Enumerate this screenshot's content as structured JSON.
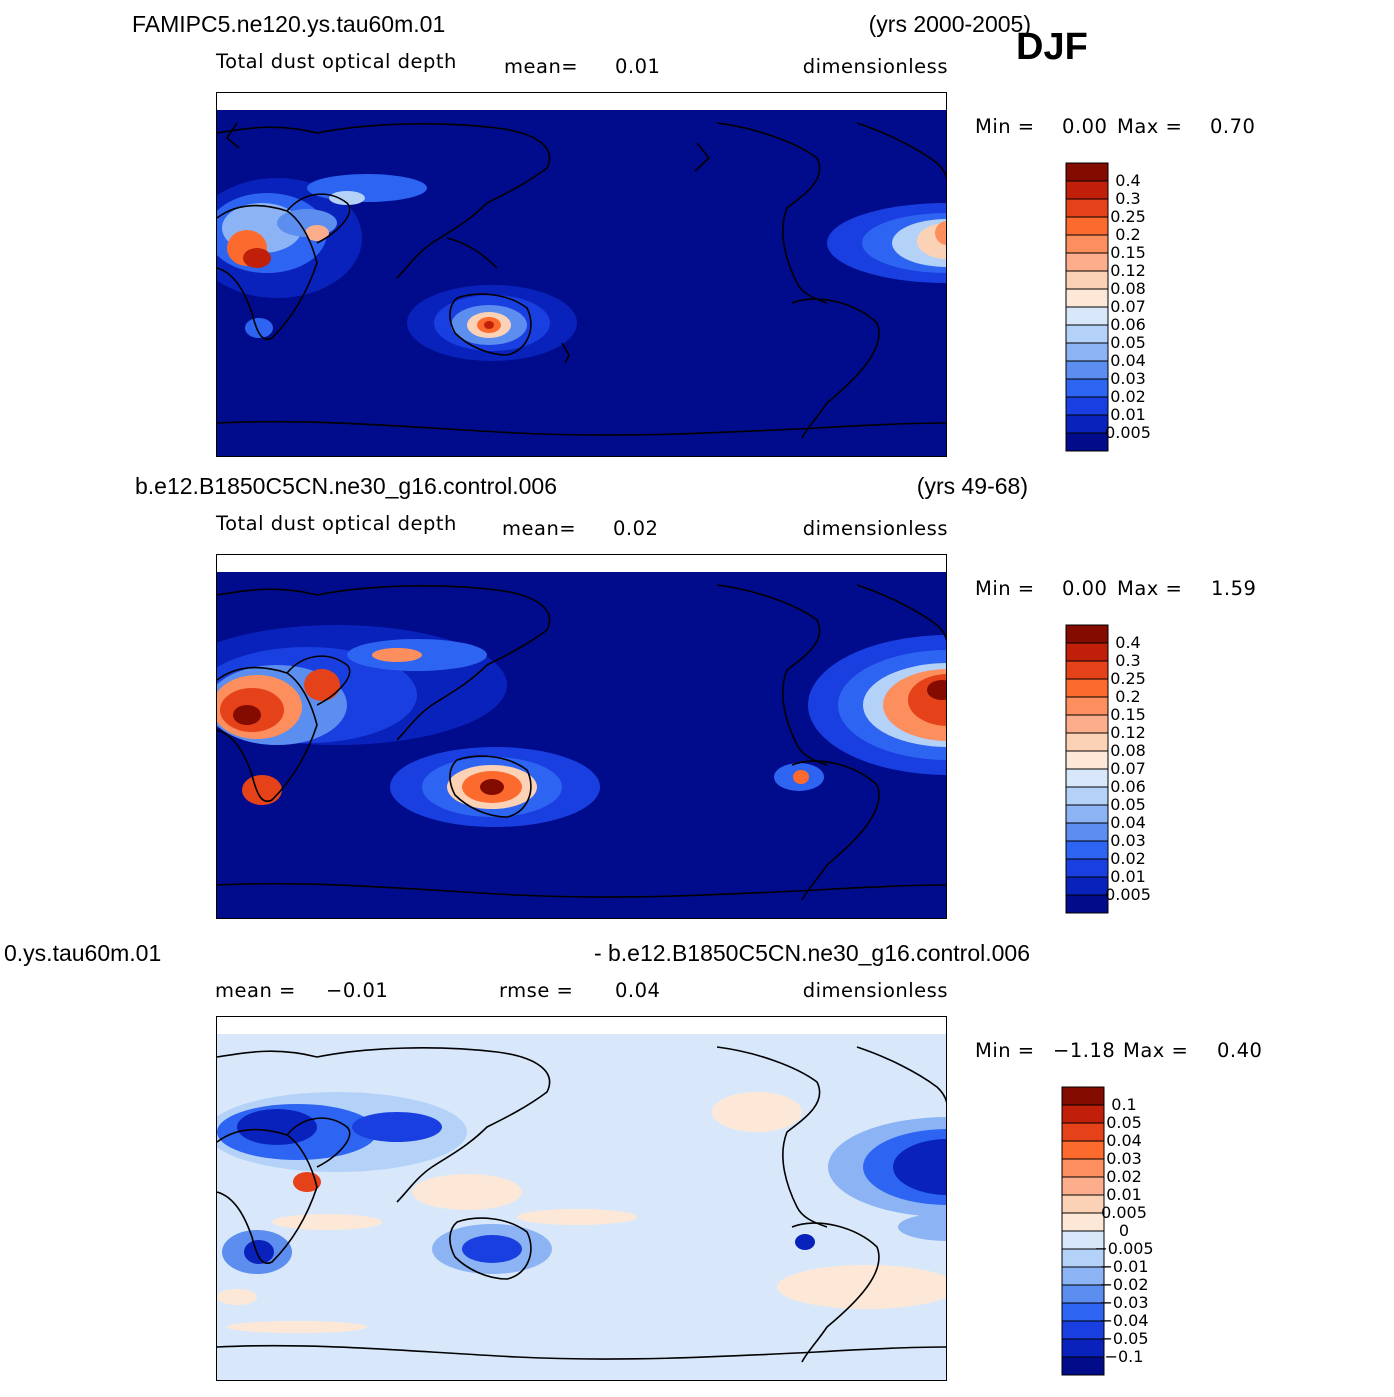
{
  "season": "DJF",
  "panels": [
    {
      "id": "panel-1",
      "case_title": "FAMIPC5.ne120.ys.tau60m.01",
      "years": "(yrs 2000-2005)",
      "variable": "Total dust optical depth",
      "stat1_label": "mean=",
      "stat1_value": "0.01",
      "stat2_label": "",
      "stat2_value": "",
      "units": "dimensionless",
      "min_label": "Min =",
      "min_value": "0.00",
      "max_label": "Max =",
      "max_value": "0.70",
      "colorbar_levels": [
        "0.4",
        "0.3",
        "0.25",
        "0.2",
        "0.15",
        "0.12",
        "0.08",
        "0.07",
        "0.06",
        "0.05",
        "0.04",
        "0.03",
        "0.02",
        "0.01",
        "0.005"
      ],
      "colorbar_colors": [
        "#840b00",
        "#c0200a",
        "#e6421a",
        "#fd6a2e",
        "#fd8e5e",
        "#fcae8c",
        "#fcd2b6",
        "#fde8d8",
        "#d8e8fa",
        "#b4d2f8",
        "#8cb4f4",
        "#5c8ef0",
        "#2e64f2",
        "#1a3fe0",
        "#0a22bc",
        "#020c8a"
      ],
      "field_background": "#010c8c"
    },
    {
      "id": "panel-2",
      "case_title": "b.e12.B1850C5CN.ne30_g16.control.006",
      "years": "(yrs 49-68)",
      "variable": "Total dust optical depth",
      "stat1_label": "mean=",
      "stat1_value": "0.02",
      "stat2_label": "",
      "stat2_value": "",
      "units": "dimensionless",
      "min_label": "Min =",
      "min_value": "0.00",
      "max_label": "Max =",
      "max_value": "1.59",
      "colorbar_levels": [
        "0.4",
        "0.3",
        "0.25",
        "0.2",
        "0.15",
        "0.12",
        "0.08",
        "0.07",
        "0.06",
        "0.05",
        "0.04",
        "0.03",
        "0.02",
        "0.01",
        "0.005"
      ],
      "colorbar_colors": [
        "#840b00",
        "#c0200a",
        "#e6421a",
        "#fd6a2e",
        "#fd8e5e",
        "#fcae8c",
        "#fcd2b6",
        "#fde8d8",
        "#d8e8fa",
        "#b4d2f8",
        "#8cb4f4",
        "#5c8ef0",
        "#2e64f2",
        "#1a3fe0",
        "#0a22bc",
        "#020c8a"
      ],
      "field_background": "#010c8c"
    },
    {
      "id": "panel-3",
      "case_title": "0.ys.tau60m.01",
      "years": "- b.e12.B1850C5CN.ne30_g16.control.006",
      "variable": "",
      "stat1_label": "mean =",
      "stat1_value": "−0.01",
      "stat2_label": "rmse =",
      "stat2_value": "0.04",
      "units": "dimensionless",
      "min_label": "Min =",
      "min_value": "−1.18",
      "max_label": "Max =",
      "max_value": "0.40",
      "colorbar_levels": [
        "0.1",
        "0.05",
        "0.04",
        "0.03",
        "0.02",
        "0.01",
        "0.005",
        "0",
        "−0.005",
        "−0.01",
        "−0.02",
        "−0.03",
        "−0.04",
        "−0.05",
        "−0.1"
      ],
      "colorbar_colors": [
        "#840b00",
        "#c0200a",
        "#e6421a",
        "#fd6a2e",
        "#fd8e5e",
        "#fcae8c",
        "#fcd2b6",
        "#fde8d8",
        "#d8e8fa",
        "#b4d2f8",
        "#8cb4f4",
        "#5c8ef0",
        "#2e64f2",
        "#1a3fe0",
        "#0a22bc",
        "#020c8a"
      ],
      "field_background": "#d8e8fa"
    }
  ]
}
